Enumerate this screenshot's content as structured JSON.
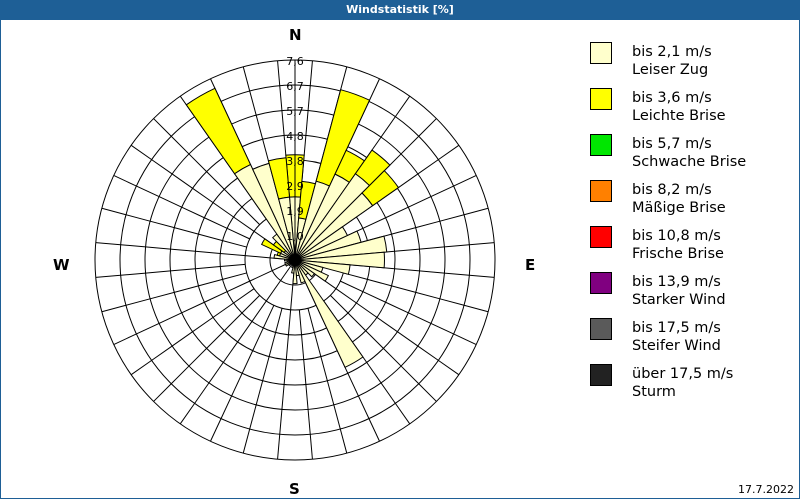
{
  "window": {
    "title": "Windstatistik [%]"
  },
  "footer": {
    "date": "17.7.2022"
  },
  "compass": {
    "n": "N",
    "e": "E",
    "s": "S",
    "w": "W"
  },
  "legend": [
    {
      "line1": "bis 2,1 m/s",
      "line2": "Leiser Zug",
      "color": "#ffffcc"
    },
    {
      "line1": "bis 3,6 m/s",
      "line2": "Leichte Brise",
      "color": "#ffff00"
    },
    {
      "line1": "bis 5,7 m/s",
      "line2": "Schwache Brise",
      "color": "#00e600"
    },
    {
      "line1": "bis 8,2 m/s",
      "line2": "Mäßige Brise",
      "color": "#ff8000"
    },
    {
      "line1": "bis 10,8 m/s",
      "line2": "Frische Brise",
      "color": "#ff0000"
    },
    {
      "line1": "bis 13,9 m/s",
      "line2": "Starker Wind",
      "color": "#800080"
    },
    {
      "line1": "bis 17,5 m/s",
      "line2": "Steifer Wind",
      "color": "#5a5a5a"
    },
    {
      "line1": "über 17,5 m/s",
      "line2": "Sturm",
      "color": "#222222"
    }
  ],
  "chart_data": {
    "type": "wind-rose",
    "title": "Windstatistik [%]",
    "ring_labels": [
      "1,0",
      "1,9",
      "2,9",
      "3,8",
      "4,8",
      "5,7",
      "6,7",
      "7,6"
    ],
    "rmax": 7.6,
    "sector_width_deg": 10,
    "series_names": [
      "bis 2,1 m/s Leiser Zug",
      "bis 3,6 m/s Leichte Brise"
    ],
    "sectors": [
      {
        "dir": 0,
        "light": 2.4,
        "yellow": 4.0
      },
      {
        "dir": 10,
        "light": 1.6,
        "yellow": 3.0
      },
      {
        "dir": 20,
        "light": 3.1,
        "yellow": 6.7
      },
      {
        "dir": 30,
        "light": 3.6,
        "yellow": 4.6
      },
      {
        "dir": 40,
        "light": 4.0,
        "yellow": 5.1
      },
      {
        "dir": 50,
        "light": 3.6,
        "yellow": 4.8
      },
      {
        "dir": 60,
        "light": 2.2,
        "yellow": 2.2
      },
      {
        "dir": 70,
        "light": 2.6,
        "yellow": 2.6
      },
      {
        "dir": 80,
        "light": 3.5,
        "yellow": 3.5
      },
      {
        "dir": 90,
        "light": 3.4,
        "yellow": 3.4
      },
      {
        "dir": 100,
        "light": 2.1,
        "yellow": 2.1
      },
      {
        "dir": 110,
        "light": 1.1,
        "yellow": 1.1
      },
      {
        "dir": 120,
        "light": 1.4,
        "yellow": 1.4
      },
      {
        "dir": 130,
        "light": 0.9,
        "yellow": 0.9
      },
      {
        "dir": 140,
        "light": 0.7,
        "yellow": 0.7
      },
      {
        "dir": 150,
        "light": 4.5,
        "yellow": 4.5
      },
      {
        "dir": 160,
        "light": 0.9,
        "yellow": 0.9
      },
      {
        "dir": 170,
        "light": 0.6,
        "yellow": 0.6
      },
      {
        "dir": 180,
        "light": 0.9,
        "yellow": 0.9
      },
      {
        "dir": 190,
        "light": 0.5,
        "yellow": 0.5
      },
      {
        "dir": 200,
        "light": 0.3,
        "yellow": 0.3
      },
      {
        "dir": 210,
        "light": 0.2,
        "yellow": 0.2
      },
      {
        "dir": 220,
        "light": 0.2,
        "yellow": 0.2
      },
      {
        "dir": 230,
        "light": 0.3,
        "yellow": 0.3
      },
      {
        "dir": 240,
        "light": 0.4,
        "yellow": 0.4
      },
      {
        "dir": 250,
        "light": 0.4,
        "yellow": 0.4
      },
      {
        "dir": 260,
        "light": 0.3,
        "yellow": 0.3
      },
      {
        "dir": 270,
        "light": 0.4,
        "yellow": 0.4
      },
      {
        "dir": 280,
        "light": 0.8,
        "yellow": 0.8
      },
      {
        "dir": 290,
        "light": 0.6,
        "yellow": 0.7
      },
      {
        "dir": 300,
        "light": 0.6,
        "yellow": 1.4
      },
      {
        "dir": 310,
        "light": 0.5,
        "yellow": 1.0
      },
      {
        "dir": 320,
        "light": 1.2,
        "yellow": 1.2
      },
      {
        "dir": 330,
        "light": 4.0,
        "yellow": 7.2
      },
      {
        "dir": 340,
        "light": 3.8,
        "yellow": 3.8
      },
      {
        "dir": 350,
        "light": 2.4,
        "yellow": 3.9
      }
    ]
  }
}
